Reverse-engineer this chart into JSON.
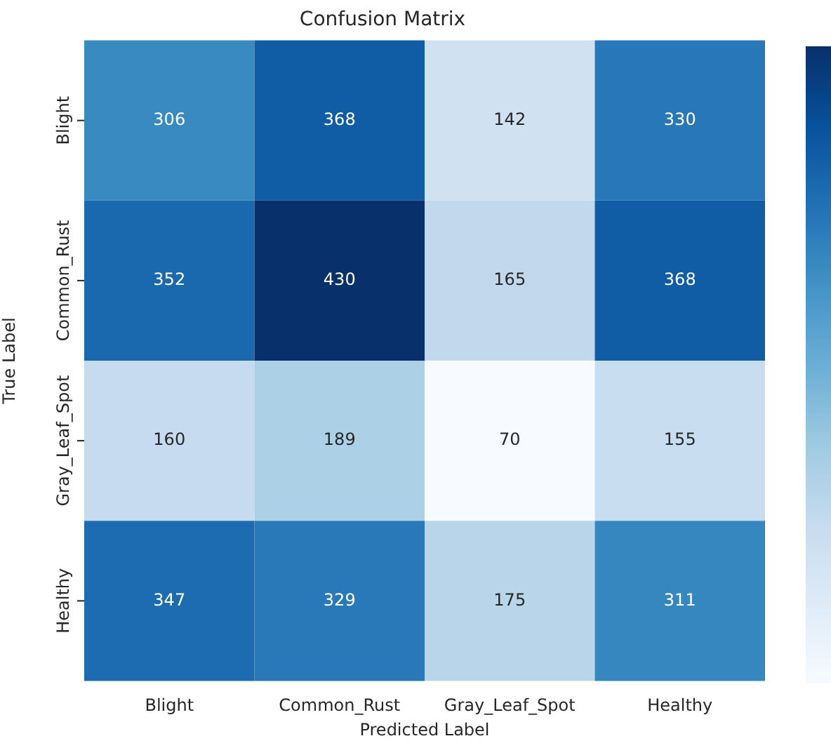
{
  "chart_data": {
    "type": "heatmap",
    "title": "Confusion Matrix",
    "xlabel": "Predicted Label",
    "ylabel": "True Label",
    "categories": [
      "Blight",
      "Common_Rust",
      "Gray_Leaf_Spot",
      "Healthy"
    ],
    "y_categories": [
      "Blight",
      "Common_Rust",
      "Gray_Leaf_Spot",
      "Healthy"
    ],
    "cells": [
      [
        306,
        368,
        142,
        330
      ],
      [
        352,
        430,
        165,
        368
      ],
      [
        160,
        189,
        70,
        155
      ],
      [
        347,
        329,
        175,
        311
      ]
    ],
    "data_labels": true
  }
}
